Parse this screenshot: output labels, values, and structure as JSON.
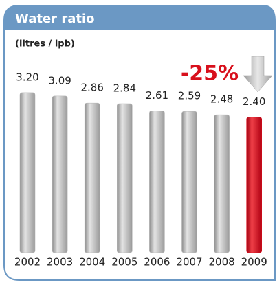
{
  "chart_data": {
    "type": "bar",
    "title": "Water ratio",
    "subtitle": "(litres / lpb)",
    "categories": [
      "2002",
      "2003",
      "2004",
      "2005",
      "2006",
      "2007",
      "2008",
      "2009"
    ],
    "values": [
      3.2,
      3.09,
      2.86,
      2.84,
      2.61,
      2.59,
      2.48,
      2.4
    ],
    "value_labels": [
      "3.20",
      "3.09",
      "2.86",
      "2.84",
      "2.61",
      "2.59",
      "2.48",
      "2.40"
    ],
    "colors": [
      "#b8b8b8",
      "#b8b8b8",
      "#b8b8b8",
      "#b8b8b8",
      "#b8b8b8",
      "#b8b8b8",
      "#b8b8b8",
      "#d8101c"
    ],
    "annotation": "-25%"
  }
}
